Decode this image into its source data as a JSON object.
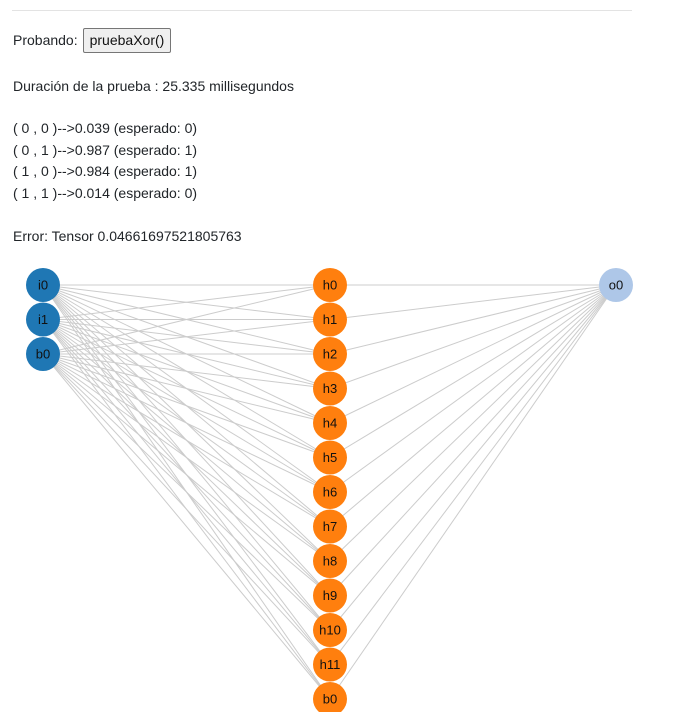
{
  "header": {
    "probando_label": "Probando:",
    "button_label": "pruebaXor()"
  },
  "duration_text": "Duración de la prueba : 25.335 millisegundos",
  "results": [
    "( 0 , 0 )-->0.039 (esperado: 0)",
    "( 0 , 1 )-->0.987 (esperado: 1)",
    "( 1 , 0 )-->0.984 (esperado: 1)",
    "( 1 , 1 )-->0.014 (esperado: 0)"
  ],
  "error_text": "Error: Tensor 0.04661697521805763",
  "network": {
    "colors": {
      "input": "#1f77b4",
      "hidden": "#ff7f0e",
      "output": "#aec7e8",
      "edge": "#cccccc"
    },
    "layers": [
      {
        "name": "input",
        "nodes": [
          "i0",
          "i1",
          "b0"
        ]
      },
      {
        "name": "hidden",
        "nodes": [
          "h0",
          "h1",
          "h2",
          "h3",
          "h4",
          "h5",
          "h6",
          "h7",
          "h8",
          "h9",
          "h10",
          "h11",
          "b0"
        ]
      },
      {
        "name": "output",
        "nodes": [
          "o0"
        ]
      }
    ]
  }
}
